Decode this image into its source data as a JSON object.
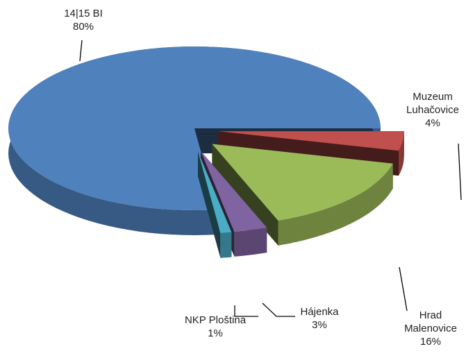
{
  "chart_data": {
    "type": "pie",
    "categories": [
      "14|15 BI",
      "Muzeum Luhačovice",
      "Hrad Malenovice",
      "Hájenka",
      "NKP Ploština"
    ],
    "values": [
      80,
      4,
      16,
      3,
      1
    ],
    "value_labels": [
      "80%",
      "4%",
      "16%",
      "3%",
      "1%"
    ],
    "colors": [
      "#4f81bd",
      "#c0504d",
      "#9bbb59",
      "#8064a2",
      "#4bacc6"
    ]
  }
}
